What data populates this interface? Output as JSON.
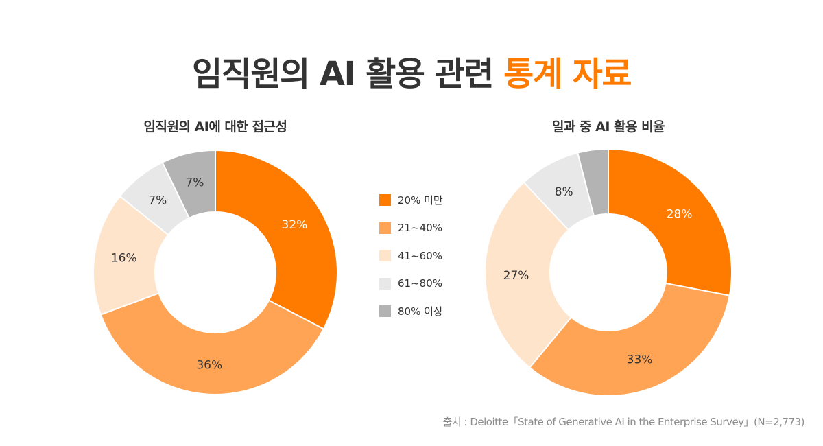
{
  "header": {
    "title_main": "임직원의 AI 활용 관련 ",
    "title_accent": "통계 자료"
  },
  "colors": {
    "accent": "#FF7B00",
    "slices": [
      "#FF7B00",
      "#FFA455",
      "#FFE4CC",
      "#E8E8E8",
      "#B3B3B3"
    ],
    "label_on_dark": "#FFFFFF",
    "label_default": "#333333"
  },
  "legend": {
    "items": [
      {
        "label": "20% 미만",
        "color": "#FF7B00"
      },
      {
        "label": "21~40%",
        "color": "#FFA455"
      },
      {
        "label": "41~60%",
        "color": "#FFE4CC"
      },
      {
        "label": "61~80%",
        "color": "#E8E8E8"
      },
      {
        "label": "80% 이상",
        "color": "#B3B3B3"
      }
    ]
  },
  "chart_data": [
    {
      "type": "pie",
      "variant": "donut",
      "title": "임직원의 AI에 대한 접근성",
      "categories": [
        "20% 미만",
        "21~40%",
        "41~60%",
        "61~80%",
        "80% 이상"
      ],
      "values": [
        32,
        36,
        16,
        7,
        7
      ],
      "labels": [
        "32%",
        "36%",
        "16%",
        "7%",
        "7%"
      ],
      "start_angle": "12 o'clock",
      "direction": "clockwise"
    },
    {
      "type": "pie",
      "variant": "donut",
      "title": "일과 중 AI 활용 비율",
      "categories": [
        "20% 미만",
        "21~40%",
        "41~60%",
        "61~80%",
        "80% 이상"
      ],
      "values": [
        28,
        33,
        27,
        8,
        4
      ],
      "labels": [
        "28%",
        "33%",
        "27%",
        "8%",
        ""
      ],
      "start_angle": "12 o'clock",
      "direction": "clockwise"
    }
  ],
  "footer": {
    "source": "출처 : Deloitte「State of Generative AI in the Enterprise Survey」(N=2,773)"
  }
}
